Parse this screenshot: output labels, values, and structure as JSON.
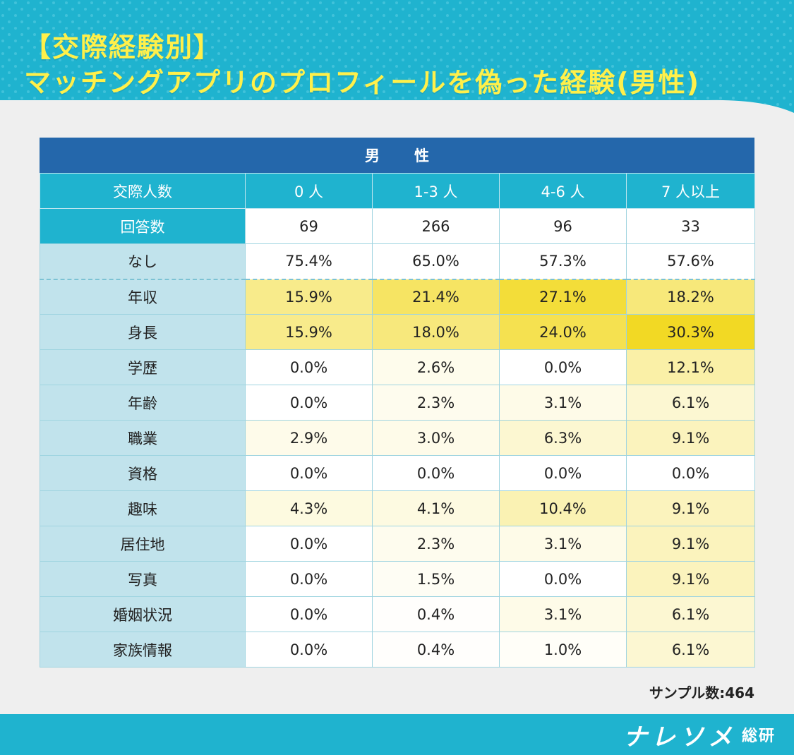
{
  "header": {
    "line1": "【交際経験別】",
    "line2": "マッチングアプリのプロフィールを偽った経験(男性)"
  },
  "chart_data": {
    "type": "table",
    "group_label": "男　性",
    "columns": [
      "交際人数",
      "0 人",
      "1-3 人",
      "4-6 人",
      "7 人以上"
    ],
    "answer_row": {
      "label": "回答数",
      "values": [
        "69",
        "266",
        "96",
        "33"
      ]
    },
    "rows": [
      {
        "label": "なし",
        "values": [
          "75.4%",
          "65.0%",
          "57.3%",
          "57.6%"
        ]
      },
      {
        "label": "年収",
        "values": [
          "15.9%",
          "21.4%",
          "27.1%",
          "18.2%"
        ]
      },
      {
        "label": "身長",
        "values": [
          "15.9%",
          "18.0%",
          "24.0%",
          "30.3%"
        ]
      },
      {
        "label": "学歴",
        "values": [
          "0.0%",
          "2.6%",
          "0.0%",
          "12.1%"
        ]
      },
      {
        "label": "年齢",
        "values": [
          "0.0%",
          "2.3%",
          "3.1%",
          "6.1%"
        ]
      },
      {
        "label": "職業",
        "values": [
          "2.9%",
          "3.0%",
          "6.3%",
          "9.1%"
        ]
      },
      {
        "label": "資格",
        "values": [
          "0.0%",
          "0.0%",
          "0.0%",
          "0.0%"
        ]
      },
      {
        "label": "趣味",
        "values": [
          "4.3%",
          "4.1%",
          "10.4%",
          "9.1%"
        ]
      },
      {
        "label": "居住地",
        "values": [
          "0.0%",
          "2.3%",
          "3.1%",
          "9.1%"
        ]
      },
      {
        "label": "写真",
        "values": [
          "0.0%",
          "1.5%",
          "0.0%",
          "9.1%"
        ]
      },
      {
        "label": "婚姻状況",
        "values": [
          "0.0%",
          "0.4%",
          "3.1%",
          "6.1%"
        ]
      },
      {
        "label": "家族情報",
        "values": [
          "0.0%",
          "0.4%",
          "1.0%",
          "6.1%"
        ]
      }
    ],
    "heat_colors": {
      "low": "#ffffff",
      "high": "#f2d924"
    }
  },
  "footer": {
    "sample_text": "サンプル数:464",
    "logo_main": "ナレソメ",
    "logo_sub": "総研"
  }
}
